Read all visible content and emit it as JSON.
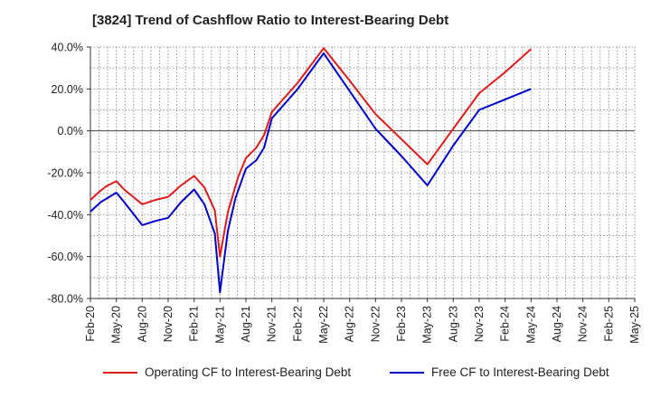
{
  "chart_data": {
    "type": "line",
    "title": "[3824]  Trend of Cashflow Ratio to Interest-Bearing Debt",
    "xlabel": "",
    "ylabel": "",
    "x": [
      "Feb-20",
      "May-20",
      "Aug-20",
      "Nov-20",
      "Feb-21",
      "May-21",
      "Aug-21",
      "Nov-21",
      "Feb-22",
      "May-22",
      "Aug-22",
      "Nov-22",
      "Feb-23",
      "May-23",
      "Aug-23",
      "Nov-23",
      "Feb-24",
      "May-24",
      "Aug-24",
      "Nov-24",
      "Feb-25",
      "May-25"
    ],
    "ylim": [
      -80,
      40
    ],
    "yticks": [
      "40.0%",
      "20.0%",
      "0.0%",
      "-20.0%",
      "-40.0%",
      "-60.0%",
      "-80.0%"
    ],
    "grid": true,
    "legend_position": "bottom",
    "series": [
      {
        "name": "Operating CF to Interest-Bearing Debt",
        "color": "#e31a1c",
        "points": [
          [
            0,
            -33
          ],
          [
            0.3,
            -29.5
          ],
          [
            0.6,
            -26.5
          ],
          [
            1,
            -24
          ],
          [
            1.3,
            -28
          ],
          [
            2,
            -35
          ],
          [
            2.5,
            -33
          ],
          [
            3,
            -31.5
          ],
          [
            3.5,
            -26
          ],
          [
            4,
            -21.5
          ],
          [
            4.4,
            -27
          ],
          [
            4.8,
            -38
          ],
          [
            5,
            -60
          ],
          [
            5.3,
            -39
          ],
          [
            5.7,
            -22
          ],
          [
            6,
            -13
          ],
          [
            6.4,
            -8
          ],
          [
            6.7,
            -2
          ],
          [
            7,
            9
          ],
          [
            7.5,
            16
          ],
          [
            8,
            23
          ],
          [
            9,
            39.5
          ],
          [
            10,
            24
          ],
          [
            11,
            8
          ],
          [
            12,
            -4
          ],
          [
            13,
            -16
          ],
          [
            14,
            1
          ],
          [
            15,
            18
          ],
          [
            16,
            28
          ],
          [
            17,
            39
          ]
        ]
      },
      {
        "name": "Free CF to Interest-Bearing Debt",
        "color": "#0000cc",
        "points": [
          [
            0,
            -38.5
          ],
          [
            0.4,
            -34
          ],
          [
            0.8,
            -31
          ],
          [
            1,
            -29.5
          ],
          [
            1.3,
            -34
          ],
          [
            2,
            -45
          ],
          [
            2.5,
            -43
          ],
          [
            3,
            -41.5
          ],
          [
            3.5,
            -34
          ],
          [
            4,
            -28
          ],
          [
            4.4,
            -35
          ],
          [
            4.8,
            -49
          ],
          [
            5,
            -77
          ],
          [
            5.3,
            -48
          ],
          [
            5.6,
            -32
          ],
          [
            6,
            -18
          ],
          [
            6.4,
            -14
          ],
          [
            6.7,
            -8
          ],
          [
            7,
            6
          ],
          [
            8,
            20
          ],
          [
            9,
            37
          ],
          [
            10,
            19
          ],
          [
            11,
            1
          ],
          [
            12,
            -12
          ],
          [
            13,
            -26
          ],
          [
            14,
            -7
          ],
          [
            15,
            10
          ],
          [
            16,
            15
          ],
          [
            17,
            20
          ]
        ]
      }
    ]
  }
}
